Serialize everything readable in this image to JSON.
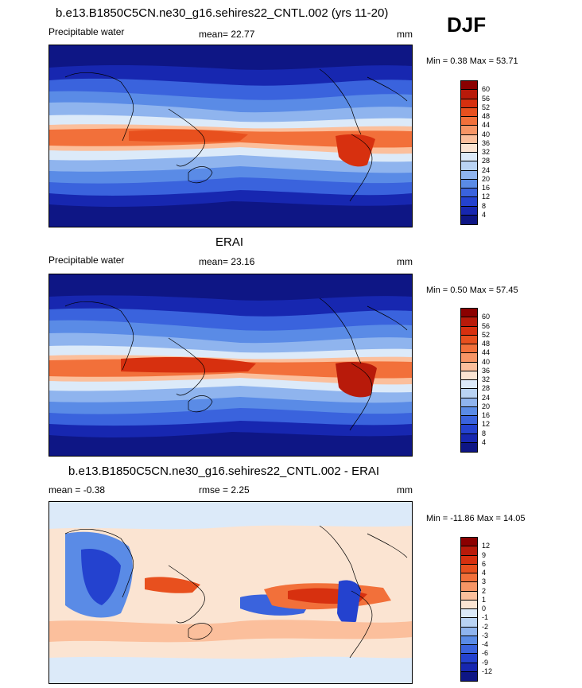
{
  "season": "DJF",
  "panels": [
    {
      "id": "model",
      "title": "b.e13.B1850C5CN.ne30_g16.sehires22_CNTL.002 (yrs 11-20)",
      "left_label": "Precipitable water",
      "center_label": "mean=  22.77",
      "right_label": "mm",
      "minmax": "Min =   0.38 Max =  53.71",
      "levels": [
        "60",
        "56",
        "52",
        "48",
        "44",
        "40",
        "36",
        "32",
        "28",
        "24",
        "20",
        "16",
        "12",
        "8",
        "4"
      ],
      "colors": [
        "#8b0000",
        "#b81a0a",
        "#d7300f",
        "#e8501e",
        "#f2703a",
        "#f79565",
        "#fbbf9c",
        "#fbe4d2",
        "#dceaf9",
        "#b9d3f4",
        "#8fb4ee",
        "#5a8be6",
        "#3a63dd",
        "#2442cf",
        "#1727b0",
        "#0e1685"
      ]
    },
    {
      "id": "obs",
      "title": "ERAI",
      "left_label": "Precipitable water",
      "center_label": "mean=  23.16",
      "right_label": "mm",
      "minmax": "Min =   0.50 Max =  57.45",
      "levels": [
        "60",
        "56",
        "52",
        "48",
        "44",
        "40",
        "36",
        "32",
        "28",
        "24",
        "20",
        "16",
        "12",
        "8",
        "4"
      ],
      "colors": [
        "#8b0000",
        "#b81a0a",
        "#d7300f",
        "#e8501e",
        "#f2703a",
        "#f79565",
        "#fbbf9c",
        "#fbe4d2",
        "#dceaf9",
        "#b9d3f4",
        "#8fb4ee",
        "#5a8be6",
        "#3a63dd",
        "#2442cf",
        "#1727b0",
        "#0e1685"
      ]
    },
    {
      "id": "diff",
      "title": "b.e13.B1850C5CN.ne30_g16.sehires22_CNTL.002 - ERAI",
      "left_label": "mean =  -0.38",
      "center_label": "rmse =   2.25",
      "right_label": "mm",
      "minmax": "Min = -11.86 Max =  14.05",
      "levels": [
        "12",
        "9",
        "6",
        "4",
        "3",
        "2",
        "1",
        "0",
        "-1",
        "-2",
        "-3",
        "-4",
        "-6",
        "-9",
        "-12"
      ],
      "colors": [
        "#8b0000",
        "#b81a0a",
        "#d7300f",
        "#e8501e",
        "#f2703a",
        "#f79565",
        "#fbbf9c",
        "#fbe4d2",
        "#dceaf9",
        "#b9d3f4",
        "#8fb4ee",
        "#5a8be6",
        "#3a63dd",
        "#2442cf",
        "#1727b0",
        "#0e1685"
      ]
    }
  ]
}
